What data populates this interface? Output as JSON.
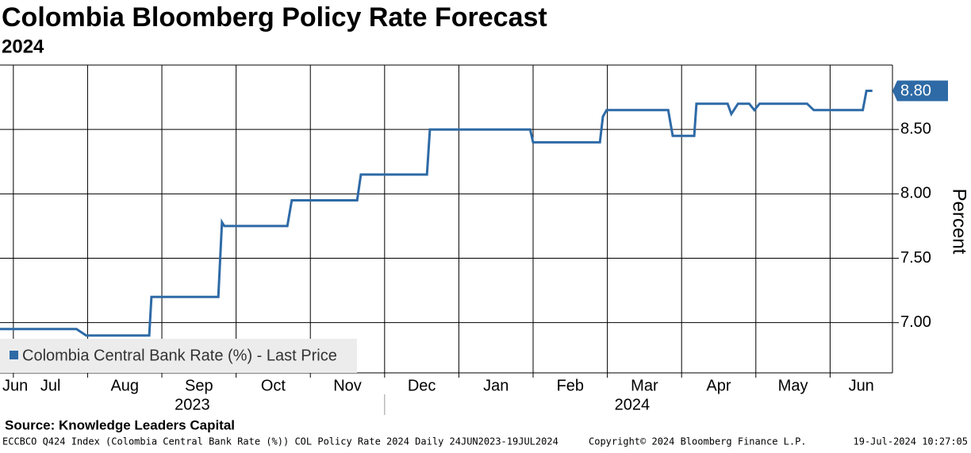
{
  "chart_data": {
    "type": "line",
    "title": "Colombia Bloomberg Policy Rate Forecast",
    "subtitle": "2024",
    "y_label": "Percent",
    "x": [
      -0.18,
      0.85,
      0.98,
      1.83,
      1.86,
      2.76,
      2.81,
      2.84,
      3.69,
      3.75,
      4.63,
      4.68,
      5.57,
      5.61,
      6.96,
      7.0,
      7.9,
      7.94,
      7.99,
      8.82,
      8.88,
      9.17,
      9.2,
      9.62,
      9.67,
      9.76,
      9.91,
      9.98,
      10.05,
      10.69,
      10.78,
      11.44,
      11.49,
      11.57
    ],
    "series": [
      {
        "name": "Colombia Central Bank Rate (%) - Last Price",
        "color": "#2e6aa6",
        "values": [
          6.95,
          6.95,
          6.9,
          6.9,
          7.2,
          7.2,
          7.78,
          7.75,
          7.75,
          7.95,
          7.95,
          8.15,
          8.15,
          8.5,
          8.5,
          8.4,
          8.4,
          8.6,
          8.65,
          8.65,
          8.45,
          8.45,
          8.7,
          8.7,
          8.62,
          8.7,
          8.7,
          8.65,
          8.7,
          8.7,
          8.65,
          8.65,
          8.8,
          8.8
        ],
        "last_value_label": "8.80"
      }
    ],
    "xlim": [
      -0.18,
      11.84
    ],
    "xticks": [
      {
        "value": -1,
        "label": "Jun"
      },
      {
        "value": 0,
        "label": "Jul"
      },
      {
        "value": 1,
        "label": "Aug"
      },
      {
        "value": 2,
        "label": "Sep"
      },
      {
        "value": 3,
        "label": "Oct"
      },
      {
        "value": 4,
        "label": "Nov"
      },
      {
        "value": 5,
        "label": "Dec"
      },
      {
        "value": 6,
        "label": "Jan"
      },
      {
        "value": 7,
        "label": "Feb"
      },
      {
        "value": 8,
        "label": "Mar"
      },
      {
        "value": 9,
        "label": "Apr"
      },
      {
        "value": 10,
        "label": "May"
      },
      {
        "value": 11,
        "label": "Jun"
      }
    ],
    "x_year_labels": [
      "2023",
      "2024"
    ],
    "ylim": [
      6.61,
      9.0
    ],
    "yticks": [
      {
        "value": 7,
        "label": "7.00"
      },
      {
        "value": 7.5,
        "label": "7.50"
      },
      {
        "value": 8,
        "label": "8.00"
      },
      {
        "value": 8.5,
        "label": "8.50"
      }
    ],
    "grid": true,
    "legend": "lower left",
    "source": "Source: Knowledge Leaders Capital",
    "footer_left": "ECCBCO Q424 Index (Colombia Central Bank Rate (%)) COL Policy Rate 2024  Daily 24JUN2023-19JUL2024",
    "footer_center": "Copyright© 2024 Bloomberg Finance L.P.",
    "footer_right": "19-Jul-2024 10:27:05"
  }
}
